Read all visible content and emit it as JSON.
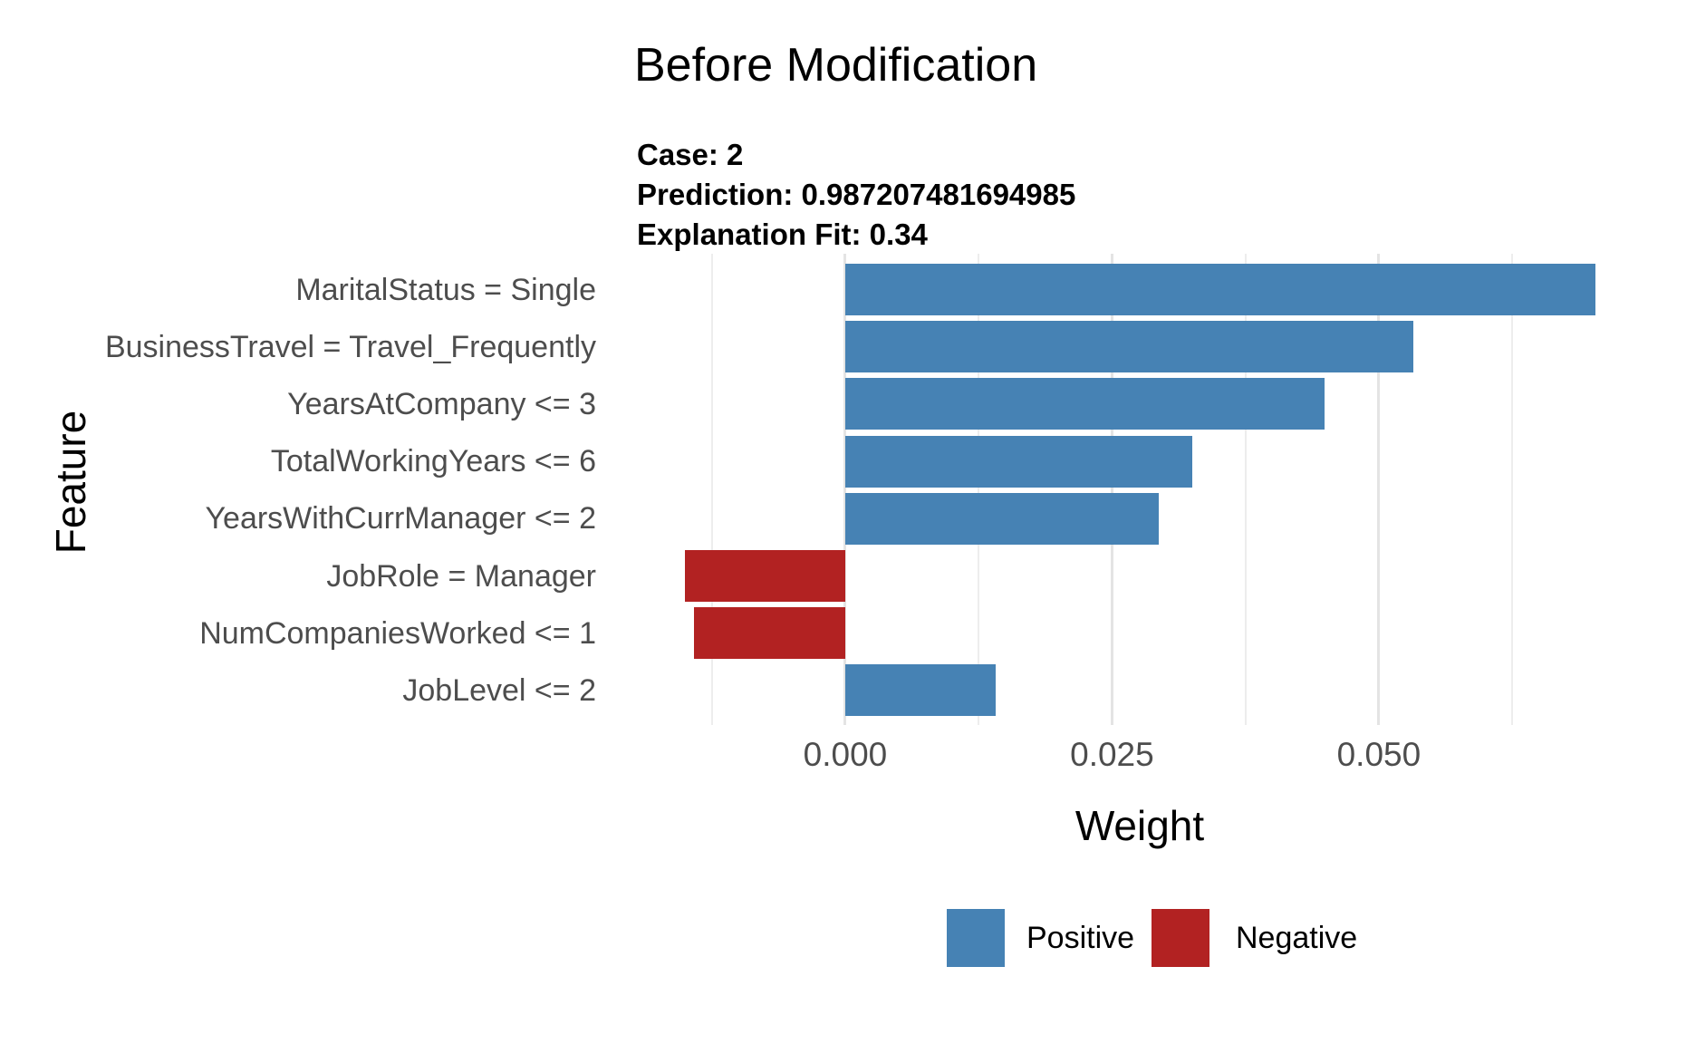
{
  "title": "Before Modification",
  "subtitle": {
    "case": "Case: 2",
    "prediction": "Prediction: 0.987207481694985",
    "fit": "Explanation Fit: 0.34"
  },
  "chart_data": {
    "type": "bar",
    "orientation": "horizontal",
    "title": "Before Modification",
    "subtitle_lines": [
      "Case: 2",
      "Prediction: 0.987207481694985",
      "Explanation Fit: 0.34"
    ],
    "xlabel": "Weight",
    "ylabel": "Feature",
    "categories": [
      "MaritalStatus = Single",
      "BusinessTravel = Travel_Frequently",
      "YearsAtCompany <= 3",
      "TotalWorkingYears <= 6",
      "YearsWithCurrManager <= 2",
      "JobRole = Manager",
      "NumCompaniesWorked <= 1",
      "JobLevel <= 2"
    ],
    "values": [
      0.0703,
      0.0532,
      0.0449,
      0.0325,
      0.0294,
      -0.015,
      -0.0142,
      0.0141
    ],
    "positive_color": "#4682B4",
    "negative_color": "#B22222",
    "xlim": [
      -0.01927,
      0.07446
    ],
    "x_ticks": [
      {
        "value": 0.0,
        "label": "0.000"
      },
      {
        "value": 0.025,
        "label": "0.025"
      },
      {
        "value": 0.05,
        "label": "0.050"
      }
    ],
    "x_minor_gridlines": [
      -0.0125,
      0.0125,
      0.0375,
      0.0625
    ],
    "grid": true,
    "legend_position": "bottom",
    "legend": [
      {
        "label": "Positive",
        "color": "#4682B4"
      },
      {
        "label": "Negative",
        "color": "#B22222"
      }
    ]
  }
}
